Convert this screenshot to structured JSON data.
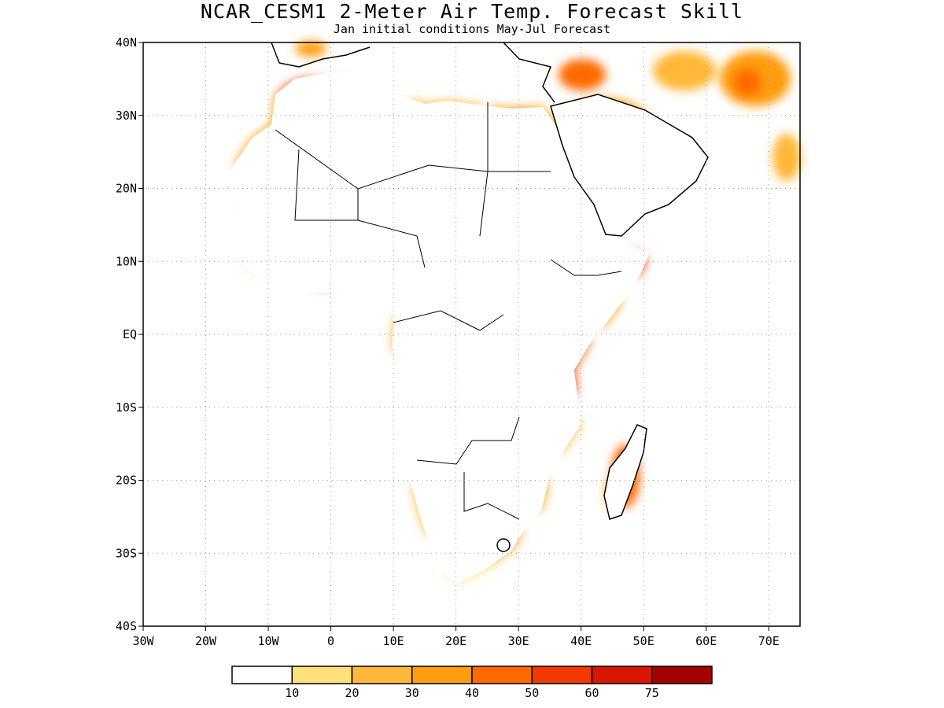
{
  "title": "NCAR_CESM1 2-Meter Air Temp. Forecast Skill",
  "subtitle": "Jan initial conditions  May-Jul Forecast",
  "map": {
    "projection": "cylindrical",
    "lon_range": [
      -30,
      75
    ],
    "lat_range": [
      -40,
      40
    ],
    "grid": true,
    "grid_style": "dotted",
    "lat_ticks": [
      {
        "value": 40,
        "label": "40N"
      },
      {
        "value": 30,
        "label": "30N"
      },
      {
        "value": 20,
        "label": "20N"
      },
      {
        "value": 10,
        "label": "10N"
      },
      {
        "value": 0,
        "label": "EQ"
      },
      {
        "value": -10,
        "label": "10S"
      },
      {
        "value": -20,
        "label": "20S"
      },
      {
        "value": -30,
        "label": "30S"
      },
      {
        "value": -40,
        "label": "40S"
      }
    ],
    "lon_ticks": [
      {
        "value": -30,
        "label": "30W"
      },
      {
        "value": -20,
        "label": "20W"
      },
      {
        "value": -10,
        "label": "10W"
      },
      {
        "value": 0,
        "label": "0"
      },
      {
        "value": 10,
        "label": "10E"
      },
      {
        "value": 20,
        "label": "20E"
      },
      {
        "value": 30,
        "label": "30E"
      },
      {
        "value": 40,
        "label": "40E"
      },
      {
        "value": 50,
        "label": "50E"
      },
      {
        "value": 60,
        "label": "60E"
      },
      {
        "value": 70,
        "label": "70E"
      }
    ]
  },
  "colorbar": {
    "bins": [
      {
        "color": "#ffffff"
      },
      {
        "color": "#ffe07a"
      },
      {
        "color": "#ffb838"
      },
      {
        "color": "#ff9d10"
      },
      {
        "color": "#ff6a00"
      },
      {
        "color": "#f23a00"
      },
      {
        "color": "#d91600"
      },
      {
        "color": "#a50000"
      }
    ],
    "labels": [
      "10",
      "20",
      "30",
      "40",
      "50",
      "60",
      "75"
    ]
  },
  "colors": {
    "land_outline": "#000000",
    "grid": "#999999"
  }
}
